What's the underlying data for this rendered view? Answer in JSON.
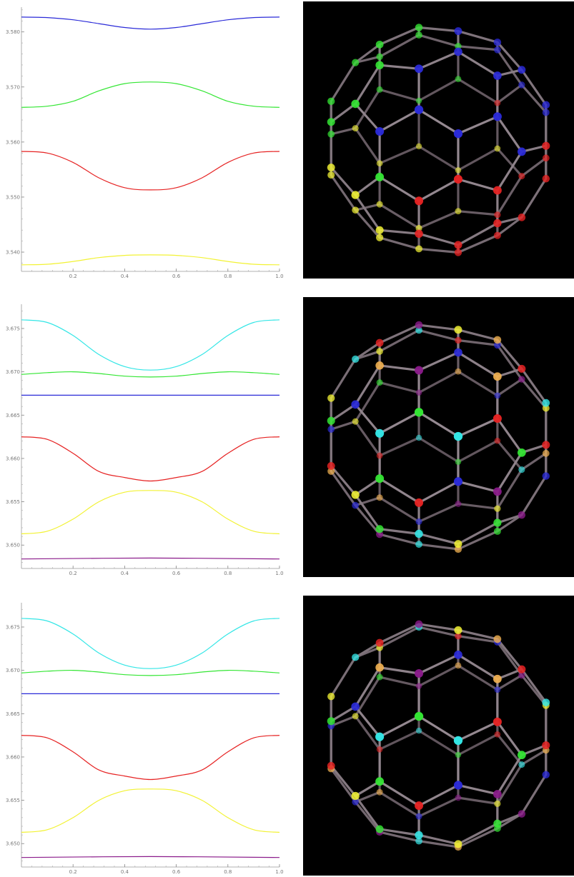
{
  "colors": {
    "blue": "#2a2ad8",
    "green": "#33e633",
    "red": "#e62222",
    "yellow": "#f2f233",
    "cyan": "#33e6e6",
    "purple": "#8a1a8a",
    "orange": "#f0b050"
  },
  "chart_data": [
    {
      "type": "line",
      "title": "",
      "xlabel": "",
      "ylabel": "",
      "xlim": [
        0,
        1
      ],
      "ylim": [
        3.5365,
        3.5845
      ],
      "x_ticks": [
        0.2,
        0.4,
        0.6,
        0.8,
        1.0
      ],
      "x_tick_labels": [
        "0.2",
        "0.4",
        "0.6",
        "0.8",
        "1.0"
      ],
      "y_ticks": [
        3.54,
        3.55,
        3.56,
        3.57,
        3.58
      ],
      "y_tick_labels": [
        "3.540",
        "3.550",
        "3.560",
        "3.570",
        "3.580"
      ],
      "grid": false,
      "series": [
        {
          "color": "blue",
          "x": [
            0,
            0.1,
            0.2,
            0.3,
            0.4,
            0.5,
            0.6,
            0.7,
            0.8,
            0.9,
            1.0
          ],
          "values": [
            3.5827,
            3.5826,
            3.5822,
            3.5815,
            3.5808,
            3.5805,
            3.5808,
            3.5815,
            3.5822,
            3.5826,
            3.5827
          ]
        },
        {
          "color": "green",
          "x": [
            0,
            0.1,
            0.2,
            0.3,
            0.4,
            0.5,
            0.6,
            0.7,
            0.8,
            0.9,
            1.0
          ],
          "values": [
            3.5663,
            3.5665,
            3.5674,
            3.5693,
            3.5706,
            3.5709,
            3.5706,
            3.5693,
            3.5674,
            3.5665,
            3.5663
          ]
        },
        {
          "color": "red",
          "x": [
            0,
            0.1,
            0.2,
            0.3,
            0.4,
            0.5,
            0.6,
            0.7,
            0.8,
            0.9,
            1.0
          ],
          "values": [
            3.5583,
            3.558,
            3.5563,
            3.5535,
            3.5517,
            3.5513,
            3.5517,
            3.5535,
            3.5563,
            3.558,
            3.5583
          ]
        },
        {
          "color": "yellow",
          "x": [
            0,
            0.1,
            0.2,
            0.3,
            0.4,
            0.5,
            0.6,
            0.7,
            0.8,
            0.9,
            1.0
          ],
          "values": [
            3.5377,
            3.5378,
            3.5383,
            3.539,
            3.5394,
            3.5395,
            3.5394,
            3.539,
            3.5383,
            3.5378,
            3.5377
          ]
        }
      ]
    },
    {
      "type": "line",
      "title": "",
      "xlabel": "",
      "ylabel": "",
      "xlim": [
        0,
        1
      ],
      "ylim": [
        3.6473,
        3.6778
      ],
      "x_ticks": [
        0.2,
        0.4,
        0.6,
        0.8,
        1.0
      ],
      "x_tick_labels": [
        "0.2",
        "0.4",
        "0.6",
        "0.8",
        "1.0"
      ],
      "y_ticks": [
        3.65,
        3.655,
        3.66,
        3.665,
        3.67,
        3.675
      ],
      "y_tick_labels": [
        "3.650",
        "3.655",
        "3.660",
        "3.665",
        "3.670",
        "3.675"
      ],
      "grid": false,
      "series": [
        {
          "color": "cyan",
          "x": [
            0,
            0.1,
            0.2,
            0.3,
            0.4,
            0.5,
            0.6,
            0.7,
            0.8,
            0.9,
            1.0
          ],
          "values": [
            3.676,
            3.6757,
            3.6742,
            3.672,
            3.6706,
            3.6702,
            3.6706,
            3.672,
            3.6742,
            3.6757,
            3.676
          ]
        },
        {
          "color": "green",
          "x": [
            0,
            0.1,
            0.2,
            0.3,
            0.4,
            0.5,
            0.6,
            0.7,
            0.8,
            0.9,
            1.0
          ],
          "values": [
            3.6697,
            3.6699,
            3.67,
            3.6698,
            3.6695,
            3.6694,
            3.6695,
            3.6698,
            3.67,
            3.6699,
            3.6697
          ]
        },
        {
          "color": "blue",
          "x": [
            0,
            0.5,
            1.0
          ],
          "values": [
            3.6673,
            3.6673,
            3.6673
          ]
        },
        {
          "color": "red",
          "x": [
            0,
            0.1,
            0.2,
            0.3,
            0.4,
            0.5,
            0.6,
            0.7,
            0.8,
            0.9,
            1.0
          ],
          "values": [
            3.6625,
            3.6622,
            3.6606,
            3.6585,
            3.6578,
            3.6574,
            3.6578,
            3.6585,
            3.6606,
            3.6622,
            3.6625
          ]
        },
        {
          "color": "yellow",
          "x": [
            0,
            0.1,
            0.2,
            0.3,
            0.4,
            0.5,
            0.6,
            0.7,
            0.8,
            0.9,
            1.0
          ],
          "values": [
            3.6513,
            3.6516,
            3.653,
            3.655,
            3.6561,
            3.6563,
            3.6561,
            3.655,
            3.653,
            3.6516,
            3.6513
          ]
        },
        {
          "color": "purple",
          "x": [
            0,
            0.5,
            1.0
          ],
          "values": [
            3.6484,
            3.6485,
            3.6484
          ]
        }
      ]
    },
    {
      "type": "line",
      "title": "",
      "xlabel": "",
      "ylabel": "",
      "xlim": [
        0,
        1
      ],
      "ylim": [
        3.6473,
        3.6778
      ],
      "x_ticks": [
        0.2,
        0.4,
        0.6,
        0.8,
        1.0
      ],
      "x_tick_labels": [
        "0.2",
        "0.4",
        "0.6",
        "0.8",
        "1.0"
      ],
      "y_ticks": [
        3.65,
        3.655,
        3.66,
        3.665,
        3.67,
        3.675
      ],
      "y_tick_labels": [
        "3.650",
        "3.655",
        "3.660",
        "3.665",
        "3.670",
        "3.675"
      ],
      "grid": false,
      "series": [
        {
          "color": "cyan",
          "x": [
            0,
            0.1,
            0.2,
            0.3,
            0.4,
            0.5,
            0.6,
            0.7,
            0.8,
            0.9,
            1.0
          ],
          "values": [
            3.676,
            3.6757,
            3.6742,
            3.672,
            3.6706,
            3.6702,
            3.6706,
            3.672,
            3.6742,
            3.6757,
            3.676
          ]
        },
        {
          "color": "green",
          "x": [
            0,
            0.1,
            0.2,
            0.3,
            0.4,
            0.5,
            0.6,
            0.7,
            0.8,
            0.9,
            1.0
          ],
          "values": [
            3.6697,
            3.6699,
            3.67,
            3.6698,
            3.6695,
            3.6694,
            3.6695,
            3.6698,
            3.67,
            3.6699,
            3.6697
          ]
        },
        {
          "color": "blue",
          "x": [
            0,
            0.5,
            1.0
          ],
          "values": [
            3.6673,
            3.6673,
            3.6673
          ]
        },
        {
          "color": "red",
          "x": [
            0,
            0.1,
            0.2,
            0.3,
            0.4,
            0.5,
            0.6,
            0.7,
            0.8,
            0.9,
            1.0
          ],
          "values": [
            3.6625,
            3.6622,
            3.6606,
            3.6585,
            3.6578,
            3.6574,
            3.6578,
            3.6585,
            3.6606,
            3.6622,
            3.6625
          ]
        },
        {
          "color": "yellow",
          "x": [
            0,
            0.1,
            0.2,
            0.3,
            0.4,
            0.5,
            0.6,
            0.7,
            0.8,
            0.9,
            1.0
          ],
          "values": [
            3.6513,
            3.6516,
            3.653,
            3.655,
            3.6561,
            3.6563,
            3.6561,
            3.655,
            3.653,
            3.6516,
            3.6513
          ]
        },
        {
          "color": "purple",
          "x": [
            0,
            0.5,
            1.0
          ],
          "values": [
            3.6484,
            3.6485,
            3.6484
          ]
        }
      ]
    }
  ],
  "molecules": [
    {
      "picture": "fullerene-ball-and-stick-render",
      "atom_colors": [
        "blue",
        "green",
        "red",
        "yellow"
      ]
    },
    {
      "picture": "fullerene-ball-and-stick-render",
      "atom_colors": [
        "cyan",
        "green",
        "blue",
        "red",
        "yellow",
        "purple",
        "orange"
      ]
    },
    {
      "picture": "fullerene-ball-and-stick-render",
      "atom_colors": [
        "cyan",
        "green",
        "blue",
        "red",
        "yellow",
        "purple",
        "orange"
      ]
    }
  ]
}
